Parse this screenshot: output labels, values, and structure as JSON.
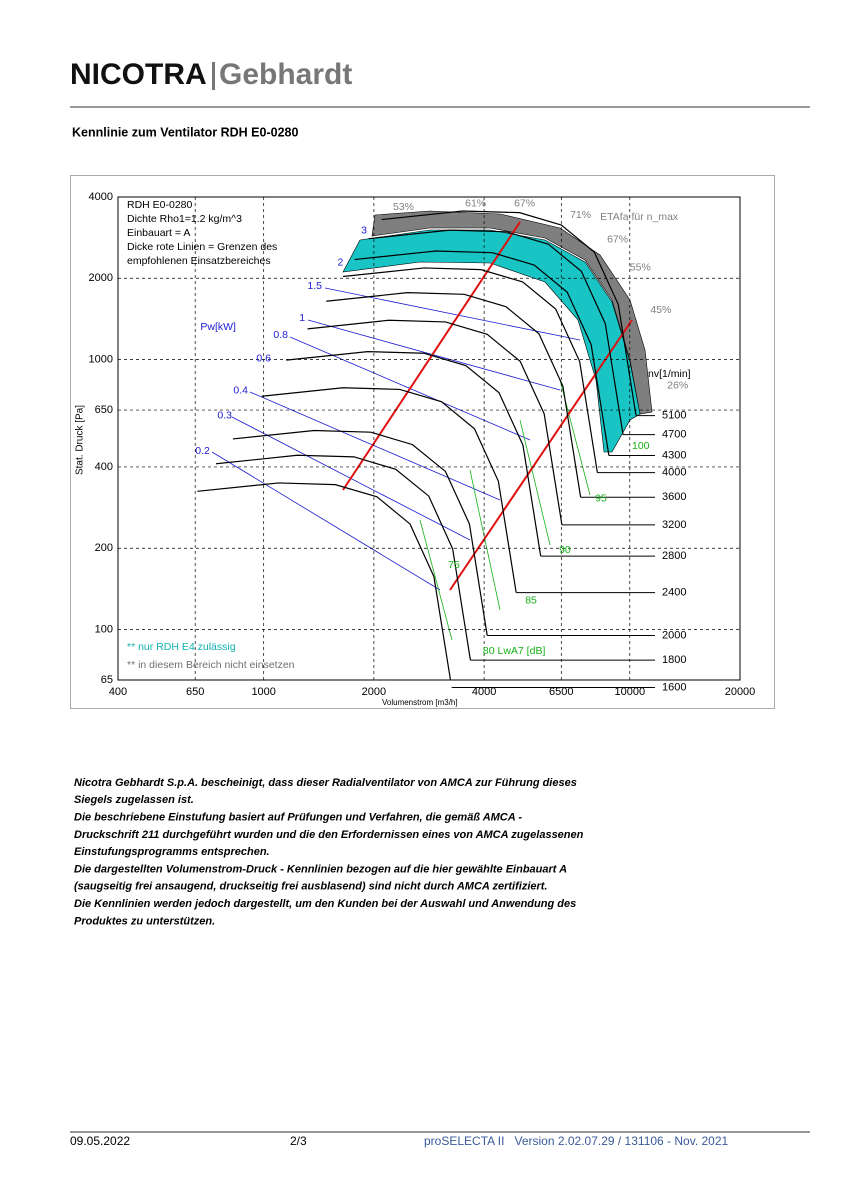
{
  "header": {
    "logo_bold": "NICOTRA",
    "logo_light": "Gebhardt"
  },
  "title": "Kennlinie zum Ventilator RDH E0-0280",
  "chart_data": {
    "type": "line",
    "x_label": "Volumenstrom [m3/h]",
    "y_label": "Stat. Druck [Pa]",
    "log_x": true,
    "log_y": true,
    "grid": true,
    "xlim": [
      400,
      20000
    ],
    "xticks": [
      400,
      650,
      1000,
      2000,
      4000,
      6500,
      10000,
      20000
    ],
    "ylim": [
      65,
      4000
    ],
    "yticks": [
      65,
      100,
      200,
      400,
      650,
      1000,
      2000,
      4000
    ],
    "info_lines": [
      "RDH E0-0280",
      "Dichte Rho1=1.2 kg/m^3",
      "Einbauart = A",
      " Dicke rote Linien = Grenzen des",
      " empfohlenen Einsatzbereiches"
    ],
    "speed_label": "nv[1/min]",
    "series_color": "#000000",
    "series": [
      {
        "name": "5100",
        "x": [
          2100,
          3500,
          5000,
          6500,
          8000,
          9300,
          10400
        ],
        "values": [
          3300,
          3550,
          3500,
          3150,
          2500,
          1600,
          620
        ]
      },
      {
        "name": "4700",
        "x": [
          1935,
          3226,
          4608,
          5990,
          7373,
          8571,
          9585
        ],
        "values": [
          2803,
          3015,
          2973,
          2675,
          2123,
          1359,
          527
        ]
      },
      {
        "name": "4300",
        "x": [
          1771,
          2951,
          4216,
          5480,
          6745,
          7841,
          8768
        ],
        "values": [
          2346,
          2524,
          2488,
          2239,
          1777,
          1137,
          441
        ]
      },
      {
        "name": "4000",
        "x": [
          1647,
          2745,
          3922,
          5098,
          6274,
          7294,
          8157
        ],
        "values": [
          2030,
          2184,
          2153,
          1938,
          1538,
          984,
          381
        ]
      },
      {
        "name": "3600",
        "x": [
          1482,
          2471,
          3529,
          4588,
          5647,
          6565,
          7341
        ],
        "values": [
          1644,
          1769,
          1744,
          1570,
          1246,
          797,
          309
        ]
      },
      {
        "name": "3200",
        "x": [
          1318,
          2196,
          3137,
          4078,
          5020,
          5835,
          6526
        ],
        "values": [
          1299,
          1398,
          1378,
          1240,
          984,
          630,
          244
        ]
      },
      {
        "name": "2800",
        "x": [
          1153,
          1922,
          2745,
          3569,
          4392,
          5106,
          5710
        ],
        "values": [
          995,
          1070,
          1055,
          949,
          754,
          482,
          187
        ]
      },
      {
        "name": "2400",
        "x": [
          988,
          1647,
          2353,
          3059,
          3765,
          4376,
          4894
        ],
        "values": [
          731,
          786,
          775,
          698,
          554,
          354,
          137
        ]
      },
      {
        "name": "2000",
        "x": [
          824,
          1373,
          1961,
          2549,
          3137,
          3647,
          4079
        ],
        "values": [
          508,
          546,
          538,
          484,
          385,
          246,
          95
        ]
      },
      {
        "name": "1800",
        "x": [
          741,
          1235,
          1765,
          2294,
          2824,
          3282,
          3670
        ],
        "values": [
          411,
          442,
          436,
          392,
          312,
          199,
          77
        ]
      },
      {
        "name": "1600",
        "x": [
          659,
          1098,
          1569,
          2039,
          2510,
          2917,
          3262
        ],
        "values": [
          325,
          349,
          344,
          310,
          246,
          157,
          61
        ]
      }
    ],
    "efficiency_labels": {
      "color": "#808080",
      "items": [
        {
          "text": "53%",
          "x": 2255,
          "y": 3660
        },
        {
          "text": "61%",
          "x": 3550,
          "y": 3780
        },
        {
          "text": "67%",
          "x": 4830,
          "y": 3780
        },
        {
          "text": "71%",
          "x": 6870,
          "y": 3420
        },
        {
          "text": "ETAfa für n_max",
          "x": 8300,
          "y": 3360
        },
        {
          "text": "67%",
          "x": 8670,
          "y": 2780
        },
        {
          "text": "55%",
          "x": 10000,
          "y": 2190
        },
        {
          "text": "45%",
          "x": 11380,
          "y": 1525
        },
        {
          "text": "26%",
          "x": 12650,
          "y": 800
        }
      ]
    },
    "power_labels": {
      "color": "#1c1cd0",
      "items": [
        {
          "text": "Pw[kW]",
          "x": 840,
          "y": 1316
        },
        {
          "text": "3",
          "x": 1915,
          "y": 3000
        },
        {
          "text": "2",
          "x": 1650,
          "y": 2280
        },
        {
          "text": "1.5",
          "x": 1443,
          "y": 1870
        },
        {
          "text": "1",
          "x": 1297,
          "y": 1423
        },
        {
          "text": "0.8",
          "x": 1165,
          "y": 1230
        },
        {
          "text": "0.6",
          "x": 1047,
          "y": 1009
        },
        {
          "text": "0.4",
          "x": 906,
          "y": 766
        },
        {
          "text": "0.3",
          "x": 819,
          "y": 618
        },
        {
          "text": "0.2",
          "x": 713,
          "y": 457
        }
      ]
    },
    "noise_labels": {
      "color": "#16b016",
      "items": [
        {
          "text": "75",
          "x": 3190,
          "y": 173
        },
        {
          "text": "85",
          "x": 5180,
          "y": 128
        },
        {
          "text": "90",
          "x": 6410,
          "y": 197
        },
        {
          "text": "95",
          "x": 8040,
          "y": 305
        },
        {
          "text": "100",
          "x": 10140,
          "y": 477
        },
        {
          "text": "80 LwA7 [dB]",
          "x": 3970,
          "y": 83
        }
      ]
    },
    "notes": [
      {
        "text": "** nur RDH E4 zulässig",
        "color": "#10b0b0"
      },
      {
        "text": "** in diesem Bereich nicht einsetzen",
        "color": "#707070"
      }
    ]
  },
  "text": [
    "Nicotra Gebhardt S.p.A. bescheinigt, dass dieser Radialventilator von AMCA zur Führung dieses",
    "Siegels zugelassen ist.",
    "Die beschriebene Einstufung basiert auf Prüfungen und Verfahren, die gemäß AMCA -",
    "Druckschrift 211 durchgeführt wurden und die den Erfordernissen eines von AMCA zugelassenen",
    "Einstufungsprogramms entsprechen.",
    "Die dargestellten Volumenstrom-Druck - Kennlinien bezogen auf die hier gewählte Einbauart A",
    "(saugseitig frei ansaugend, druckseitig frei ausblasend) sind nicht durch AMCA zertifiziert.",
    "Die Kennlinien werden jedoch dargestellt, um den Kunden bei der Auswahl und Anwendung des",
    "Produktes zu unterstützen."
  ],
  "footer": {
    "date": "09.05.2022",
    "page": "2/3",
    "software": "proSELECTA II   Version 2.02.07.29 / 131106 - Nov. 2021"
  }
}
